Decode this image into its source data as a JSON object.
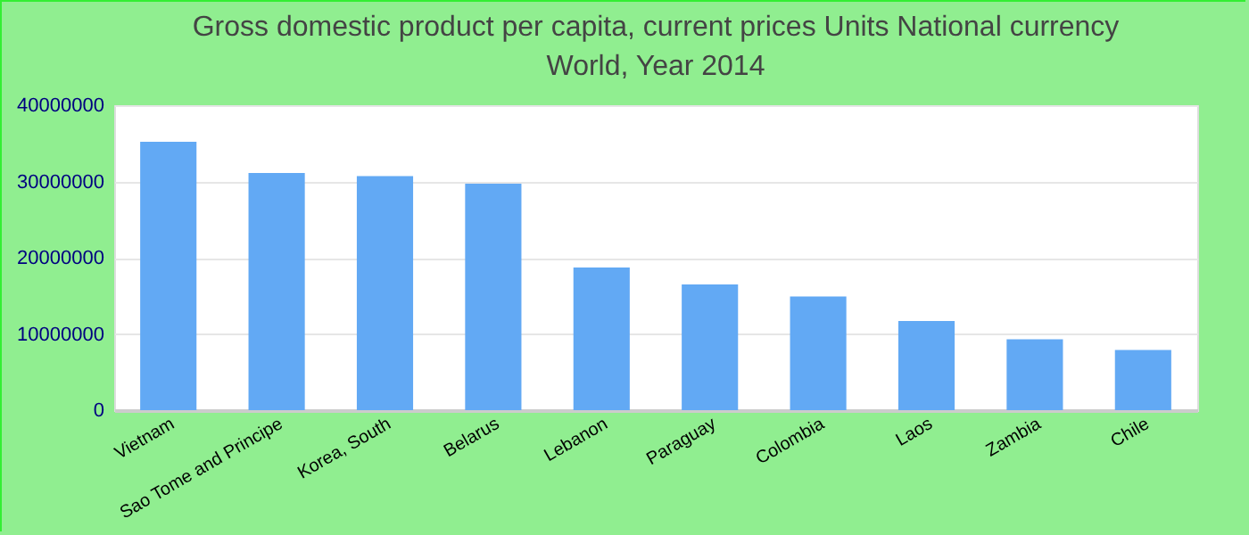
{
  "chart_data": {
    "type": "bar",
    "title": [
      "Gross domestic product per capita, current prices Units National currency",
      "World, Year 2014"
    ],
    "categories": [
      "Vietnam",
      "Sao Tome and Principe",
      "Korea, South",
      "Belarus",
      "Lebanon",
      "Paraguay",
      "Colombia",
      "Laos",
      "Zambia",
      "Chile"
    ],
    "values": [
      35200000,
      31100000,
      30700000,
      29700000,
      18700000,
      16500000,
      14900000,
      11700000,
      9300000,
      7900000
    ],
    "color": "#62a9f4",
    "ylim": [
      0,
      40000000
    ],
    "yticks": [
      0,
      10000000,
      20000000,
      30000000,
      40000000
    ],
    "grid": "y"
  }
}
